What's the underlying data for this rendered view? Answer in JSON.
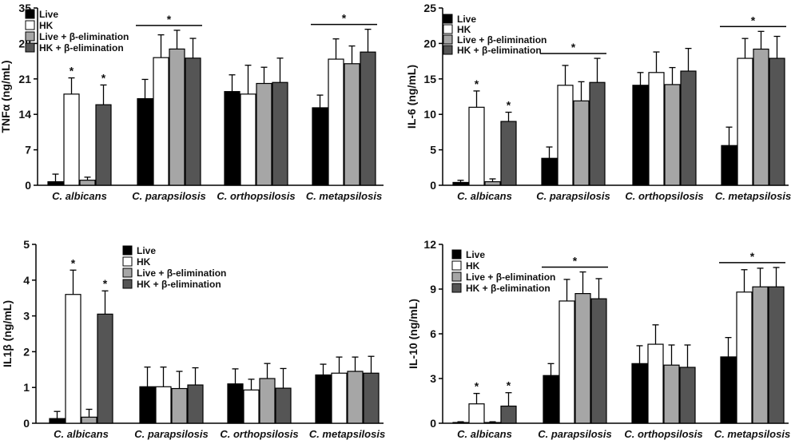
{
  "chart_data": [
    {
      "type": "bar",
      "ylabel": "TNFα (ng/mL)",
      "ylim": [
        0,
        35
      ],
      "yticks": [
        "0",
        "7",
        "14",
        "21",
        "28",
        "35"
      ],
      "categories": [
        "C. albicans",
        "C. parapsilosis",
        "C. orthopsilosis",
        "C. metapsilosis"
      ],
      "series": [
        {
          "name": "Live",
          "color": "#000000",
          "values": [
            0.7,
            17.1,
            18.5,
            15.3
          ],
          "errors": [
            1.5,
            3.8,
            3.3,
            2.5
          ]
        },
        {
          "name": "HK",
          "color": "#ffffff",
          "values": [
            18.0,
            25.2,
            18.0,
            24.9
          ],
          "errors": [
            3.2,
            4.5,
            5.7,
            4.0
          ]
        },
        {
          "name": "Live + β-elimination",
          "color": "#a6a6a6",
          "values": [
            1.0,
            26.9,
            20.1,
            24.0
          ],
          "errors": [
            0.6,
            3.7,
            3.2,
            3.5
          ]
        },
        {
          "name": "HK + β-elimination",
          "color": "#555555",
          "values": [
            15.9,
            25.1,
            20.3,
            26.3
          ],
          "errors": [
            3.9,
            3.9,
            4.8,
            4.5
          ]
        }
      ],
      "significance": [
        {
          "type": "single",
          "category": 0,
          "series": 1,
          "label": "*"
        },
        {
          "type": "single",
          "category": 0,
          "series": 3,
          "label": "*"
        },
        {
          "type": "bracket",
          "category": 1,
          "label": "*"
        },
        {
          "type": "bracket",
          "category": 3,
          "label": "*"
        }
      ]
    },
    {
      "type": "bar",
      "ylabel": "IL-6 (ng/mL)",
      "ylim": [
        0,
        25
      ],
      "yticks": [
        "0",
        "5",
        "10",
        "15",
        "20",
        "25"
      ],
      "categories": [
        "C. albicans",
        "C. parapsilosis",
        "C. orthopsilosis",
        "C. metapsilosis"
      ],
      "series": [
        {
          "name": "Live",
          "color": "#000000",
          "values": [
            0.4,
            3.8,
            14.1,
            5.6
          ],
          "errors": [
            0.3,
            1.6,
            1.8,
            2.6
          ]
        },
        {
          "name": "HK",
          "color": "#ffffff",
          "values": [
            11.0,
            14.1,
            15.9,
            17.9
          ],
          "errors": [
            2.3,
            2.8,
            2.9,
            2.8
          ]
        },
        {
          "name": "Live + β-elimination",
          "color": "#a6a6a6",
          "values": [
            0.5,
            11.9,
            14.2,
            19.2
          ],
          "errors": [
            0.4,
            2.7,
            2.4,
            2.5
          ]
        },
        {
          "name": "HK + β-elimination",
          "color": "#555555",
          "values": [
            9.0,
            14.5,
            16.1,
            17.9
          ],
          "errors": [
            1.3,
            3.4,
            3.2,
            3.1
          ]
        }
      ],
      "significance": [
        {
          "type": "single",
          "category": 0,
          "series": 1,
          "label": "*"
        },
        {
          "type": "single",
          "category": 0,
          "series": 3,
          "label": "*"
        },
        {
          "type": "bracket",
          "category": 1,
          "label": "*"
        },
        {
          "type": "bracket",
          "category": 3,
          "label": "*"
        }
      ]
    },
    {
      "type": "bar",
      "ylabel": "IL1β (ng/mL)",
      "ylim": [
        0,
        5
      ],
      "yticks": [
        "0",
        "1",
        "2",
        "3",
        "4",
        "5"
      ],
      "categories": [
        "C. albicans",
        "C. parapsilosis",
        "C. orthopsilosis",
        "C. metapsilosis"
      ],
      "series": [
        {
          "name": "Live",
          "color": "#000000",
          "values": [
            0.13,
            1.02,
            1.1,
            1.35
          ],
          "errors": [
            0.2,
            0.55,
            0.42,
            0.3
          ]
        },
        {
          "name": "HK",
          "color": "#ffffff",
          "values": [
            3.6,
            1.02,
            0.93,
            1.4
          ],
          "errors": [
            0.68,
            0.55,
            0.3,
            0.45
          ]
        },
        {
          "name": "Live + β-elimination",
          "color": "#a6a6a6",
          "values": [
            0.17,
            0.97,
            1.25,
            1.45
          ],
          "errors": [
            0.22,
            0.48,
            0.42,
            0.4
          ]
        },
        {
          "name": "HK + β-elimination",
          "color": "#555555",
          "values": [
            3.05,
            1.07,
            0.98,
            1.4
          ],
          "errors": [
            0.65,
            0.48,
            0.55,
            0.47
          ]
        }
      ],
      "significance": [
        {
          "type": "single",
          "category": 0,
          "series": 1,
          "label": "*"
        },
        {
          "type": "single",
          "category": 0,
          "series": 3,
          "label": "*"
        }
      ]
    },
    {
      "type": "bar",
      "ylabel": "IL-10 (ng/mL)",
      "ylim": [
        0,
        12
      ],
      "yticks": [
        "0",
        "3",
        "6",
        "9",
        "12"
      ],
      "categories": [
        "C. albicans",
        "C. parapsilosis",
        "C. orthopsilosis",
        "C. metapsilosis"
      ],
      "series": [
        {
          "name": "Live",
          "color": "#000000",
          "values": [
            0.05,
            3.2,
            4.0,
            4.45
          ],
          "errors": [
            0.05,
            0.8,
            1.2,
            1.3
          ]
        },
        {
          "name": "HK",
          "color": "#ffffff",
          "values": [
            1.3,
            8.2,
            5.3,
            8.8
          ],
          "errors": [
            0.7,
            1.45,
            1.3,
            1.5
          ]
        },
        {
          "name": "Live + β-elimination",
          "color": "#a6a6a6",
          "values": [
            0.05,
            8.7,
            3.9,
            9.15
          ],
          "errors": [
            0.05,
            1.45,
            1.35,
            1.25
          ]
        },
        {
          "name": "HK + β-elimination",
          "color": "#555555",
          "values": [
            1.15,
            8.35,
            3.75,
            9.15
          ],
          "errors": [
            0.9,
            1.35,
            1.5,
            1.3
          ]
        }
      ],
      "significance": [
        {
          "type": "single",
          "category": 0,
          "series": 1,
          "label": "*"
        },
        {
          "type": "single",
          "category": 0,
          "series": 3,
          "label": "*"
        },
        {
          "type": "bracket",
          "category": 1,
          "label": "*"
        },
        {
          "type": "bracket",
          "category": 3,
          "label": "*"
        }
      ]
    }
  ]
}
